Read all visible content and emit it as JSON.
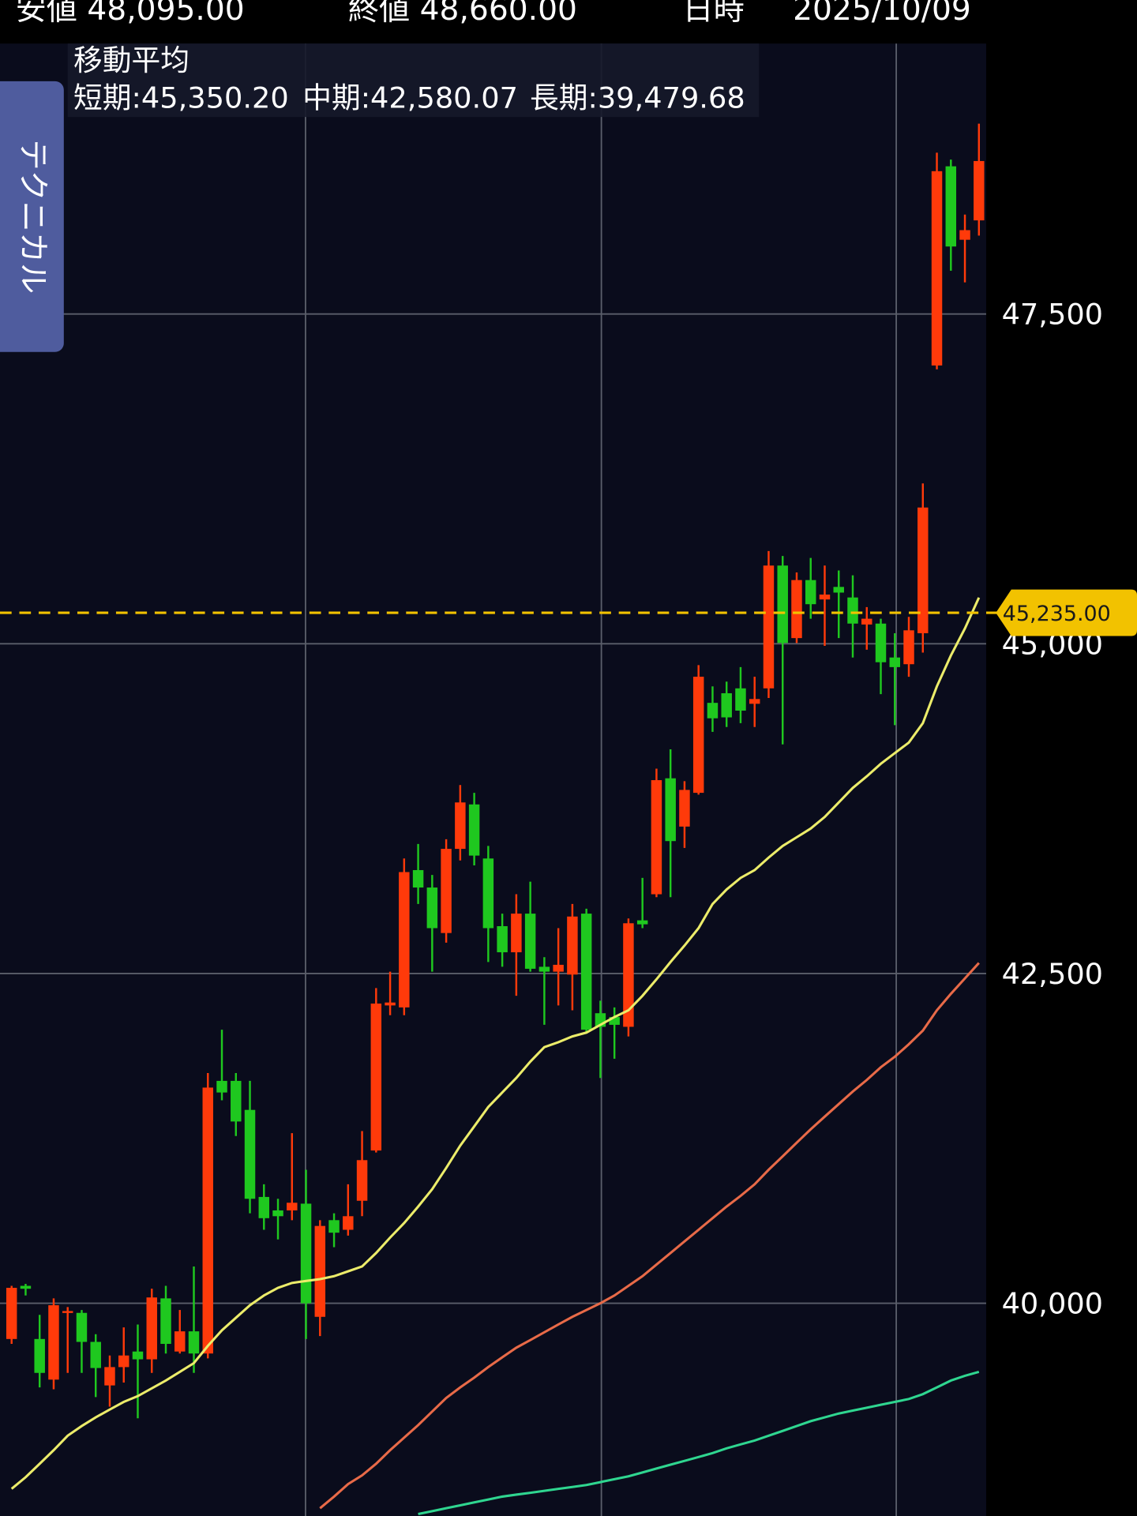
{
  "header": [
    "安値 48,095.00",
    "終値 48,660.00",
    "日時",
    "2025/10/09"
  ],
  "side_tab": "テクニカル",
  "chart_data": {
    "type": "candlestick",
    "legend_title": "移動平均",
    "categories": [
      null,
      null,
      null,
      null,
      null,
      null,
      null,
      null,
      null,
      null,
      null,
      null,
      null,
      null,
      null,
      null,
      null,
      null,
      null,
      null,
      null,
      null,
      null,
      null,
      null,
      null,
      null,
      null,
      null,
      null,
      null,
      null,
      null,
      null,
      null,
      null,
      null,
      null,
      null,
      null,
      null,
      null,
      null,
      null,
      null,
      null,
      null,
      null,
      null,
      null,
      null,
      null,
      null,
      null,
      null,
      null,
      null,
      null,
      null,
      null,
      null,
      null,
      null,
      null,
      null,
      null,
      null,
      null,
      null,
      null
    ],
    "open": [
      39729,
      40132,
      39729,
      39421,
      39927,
      39927,
      39707,
      39377,
      39516,
      39634,
      39575,
      40037,
      39634,
      39787,
      39619,
      41686,
      41686,
      41466,
      40806,
      40704,
      40704,
      40755,
      39897,
      40630,
      40557,
      40777,
      41158,
      42258,
      42243,
      43284,
      43152,
      42807,
      43445,
      43782,
      43372,
      42859,
      42661,
      42954,
      42551,
      42514,
      42492,
      42954,
      42199,
      42170,
      42096,
      42903,
      43101,
      43980,
      43614,
      43870,
      44552,
      44625,
      44662,
      44545,
      44662,
      45593,
      45043,
      45483,
      45336,
      45431,
      45351,
      45146,
      45153,
      44896,
      44845,
      45080,
      47110,
      48620,
      48063,
      48210
    ],
    "high": [
      40132,
      40147,
      39912,
      40037,
      39971,
      39949,
      39765,
      39604,
      39817,
      39839,
      40110,
      40132,
      39949,
      40279,
      41745,
      42074,
      41745,
      41686,
      40902,
      40792,
      41290,
      41012,
      40630,
      40682,
      40902,
      41305,
      42390,
      42514,
      43372,
      43482,
      43247,
      43518,
      43929,
      43870,
      43467,
      42954,
      43101,
      43196,
      42624,
      42844,
      43027,
      42991,
      42294,
      42243,
      42917,
      43225,
      44053,
      44200,
      43958,
      44838,
      44677,
      44713,
      44823,
      44750,
      45703,
      45666,
      45541,
      45651,
      45593,
      45556,
      45519,
      45278,
      45190,
      45080,
      45204,
      46216,
      48723,
      48671,
      48254,
      48943
    ],
    "low": [
      39692,
      40059,
      39362,
      39348,
      39472,
      39472,
      39289,
      39216,
      39399,
      39128,
      39472,
      39619,
      39619,
      39472,
      39582,
      41539,
      41268,
      40682,
      40557,
      40484,
      40630,
      39729,
      39751,
      40425,
      40513,
      40660,
      41143,
      42184,
      42184,
      43027,
      42514,
      42734,
      43357,
      43320,
      42587,
      42551,
      42331,
      42514,
      42111,
      42258,
      42221,
      42052,
      41708,
      41854,
      42023,
      42844,
      43079,
      43079,
      43452,
      43856,
      44332,
      44369,
      44398,
      44369,
      44589,
      44237,
      45006,
      45190,
      44984,
      45043,
      44896,
      44955,
      44618,
      44383,
      44750,
      44933,
      47081,
      47828,
      47740,
      48095
    ],
    "close": [
      40117,
      40110,
      39472,
      39985,
      39941,
      39707,
      39509,
      39516,
      39604,
      39575,
      40044,
      39692,
      39787,
      39619,
      41635,
      41598,
      41378,
      40792,
      40645,
      40660,
      40762,
      40000,
      40586,
      40535,
      40660,
      41085,
      42272,
      42280,
      43269,
      43152,
      42844,
      43445,
      43797,
      43394,
      42844,
      42661,
      42954,
      42536,
      42514,
      42566,
      42932,
      42074,
      42096,
      42111,
      42881,
      42873,
      43966,
      43504,
      43892,
      44750,
      44435,
      44442,
      44493,
      44581,
      45593,
      45006,
      45483,
      45300,
      45373,
      45388,
      45153,
      45190,
      44860,
      44823,
      45102,
      46033,
      48583,
      48012,
      48136,
      48660
    ],
    "up_color": "#ff3a0a",
    "down_color": "#1fc81f",
    "moving_averages": [
      {
        "name": "短期:45,350.20",
        "color": "#ecec6a",
        "values": [
          38593,
          38681,
          38783,
          38886,
          38996,
          39069,
          39135,
          39194,
          39252,
          39296,
          39355,
          39414,
          39480,
          39546,
          39677,
          39795,
          39890,
          39985,
          40059,
          40117,
          40154,
          40169,
          40183,
          40205,
          40242,
          40279,
          40381,
          40498,
          40608,
          40733,
          40865,
          41026,
          41195,
          41341,
          41488,
          41598,
          41708,
          41832,
          41942,
          41979,
          42023,
          42052,
          42111,
          42170,
          42221,
          42331,
          42456,
          42587,
          42712,
          42844,
          43027,
          43137,
          43225,
          43284,
          43379,
          43467,
          43533,
          43599,
          43687,
          43797,
          43907,
          43995,
          44090,
          44171,
          44251,
          44398,
          44677,
          44911,
          45116,
          45350
        ]
      },
      {
        "name": "中期:42,580.07",
        "color": "#e86a48",
        "values": [
          null,
          null,
          null,
          null,
          null,
          null,
          null,
          null,
          null,
          null,
          null,
          null,
          null,
          null,
          null,
          null,
          null,
          null,
          null,
          null,
          null,
          null,
          38446,
          38534,
          38629,
          38695,
          38783,
          38886,
          38981,
          39076,
          39179,
          39282,
          39362,
          39436,
          39516,
          39590,
          39663,
          39721,
          39780,
          39839,
          39897,
          39949,
          40000,
          40059,
          40132,
          40205,
          40293,
          40381,
          40469,
          40557,
          40645,
          40733,
          40814,
          40902,
          41012,
          41114,
          41217,
          41319,
          41415,
          41510,
          41605,
          41693,
          41789,
          41869,
          41964,
          42067,
          42221,
          42346,
          42463,
          42580
        ]
      },
      {
        "name": "長期:39,479.68",
        "color": "#2fd690",
        "values": [
          null,
          null,
          null,
          null,
          null,
          null,
          null,
          null,
          null,
          null,
          null,
          null,
          null,
          null,
          null,
          null,
          null,
          null,
          null,
          null,
          null,
          null,
          null,
          null,
          null,
          null,
          null,
          null,
          null,
          38402,
          38424,
          38446,
          38468,
          38490,
          38512,
          38534,
          38549,
          38563,
          38578,
          38593,
          38607,
          38622,
          38644,
          38666,
          38688,
          38717,
          38747,
          38776,
          38805,
          38834,
          38864,
          38900,
          38930,
          38959,
          38996,
          39032,
          39069,
          39106,
          39135,
          39164,
          39186,
          39208,
          39230,
          39252,
          39274,
          39311,
          39362,
          39414,
          39450,
          39480
        ]
      }
    ],
    "current_price": {
      "value": 45235,
      "label": "45,235.00"
    },
    "ylim": [
      38387,
      49551
    ],
    "yticks": [
      {
        "value": 40000,
        "label": "40,000"
      },
      {
        "value": 42500,
        "label": "42,500"
      },
      {
        "value": 45000,
        "label": "45,000"
      },
      {
        "value": 47500,
        "label": "47,500"
      }
    ],
    "grid": true
  }
}
